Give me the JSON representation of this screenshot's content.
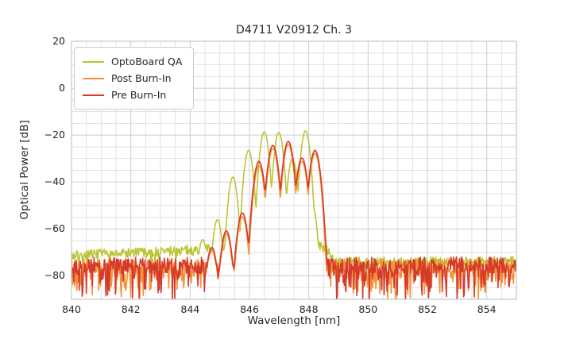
{
  "figure": {
    "background": "#ffffff",
    "text_color": "#262626",
    "grid_minor_color": "#dedede",
    "grid_major_color": "#cccccc",
    "spine_color": "#c5c5c5"
  },
  "chart_data": {
    "type": "line",
    "title": "D4711 V20912 Ch. 3",
    "xlabel": "Wavelength [nm]",
    "ylabel": "Optical Power [dB]",
    "xlim": [
      840,
      855
    ],
    "ylim": [
      -90,
      20
    ],
    "xticks": [
      840,
      842,
      844,
      846,
      848,
      850,
      852,
      854
    ],
    "yticks": [
      20,
      0,
      -20,
      -40,
      -60,
      -80
    ],
    "minor_x_step": 0.5,
    "minor_y_step": 5,
    "grid": true,
    "legend_position": "upper left",
    "sample_step_nm": 0.02,
    "series": [
      {
        "name": "OptoBoard QA",
        "color": "#bdc436",
        "lobe_sharpness": 410,
        "modes": [
          [
            844.42,
            -64.5
          ],
          [
            844.92,
            -56.0
          ],
          [
            845.44,
            -37.9
          ],
          [
            845.97,
            -26.5
          ],
          [
            846.5,
            -18.6
          ],
          [
            846.99,
            -18.8
          ],
          [
            847.45,
            -30.0
          ],
          [
            847.89,
            -18.2
          ],
          [
            848.12,
            -50.0
          ]
        ],
        "noise_floor_points": [
          [
            840,
            -71.5
          ],
          [
            844.3,
            -68.8
          ],
          [
            848.3,
            -67.4
          ],
          [
            848.58,
            -67.6
          ],
          [
            848.85,
            -74.2
          ],
          [
            855,
            -74.0
          ]
        ],
        "noise_amplitude_db": 2.2,
        "spike_probability": 0.12,
        "spike_depth_db": 5,
        "seed": 7
      },
      {
        "name": "Post Burn-In",
        "color": "#f5913a",
        "lobe_sharpness": 330,
        "modes": [
          [
            844.73,
            -69.0
          ],
          [
            845.22,
            -62.0
          ],
          [
            845.76,
            -54.8
          ],
          [
            846.32,
            -33.0
          ],
          [
            846.79,
            -25.8
          ],
          [
            847.31,
            -24.0
          ],
          [
            847.77,
            -31.2
          ],
          [
            848.21,
            -27.8
          ]
        ],
        "noise_floor_points": [
          [
            840,
            -76.2
          ],
          [
            855,
            -76.0
          ]
        ],
        "noise_amplitude_db": 3.3,
        "spike_probability": 0.3,
        "spike_depth_db": 12,
        "seed": 13
      },
      {
        "name": "Pre Burn-In",
        "color": "#d63a2a",
        "lobe_sharpness": 300,
        "modes": [
          [
            844.73,
            -67.9
          ],
          [
            845.22,
            -60.8
          ],
          [
            845.76,
            -53.2
          ],
          [
            846.32,
            -31.2
          ],
          [
            846.79,
            -24.4
          ],
          [
            847.31,
            -22.7
          ],
          [
            847.77,
            -29.8
          ],
          [
            848.21,
            -26.5
          ]
        ],
        "noise_floor_points": [
          [
            840,
            -75.6
          ],
          [
            855,
            -75.4
          ]
        ],
        "noise_amplitude_db": 3.5,
        "spike_probability": 0.32,
        "spike_depth_db": 13,
        "seed": 29
      }
    ]
  }
}
